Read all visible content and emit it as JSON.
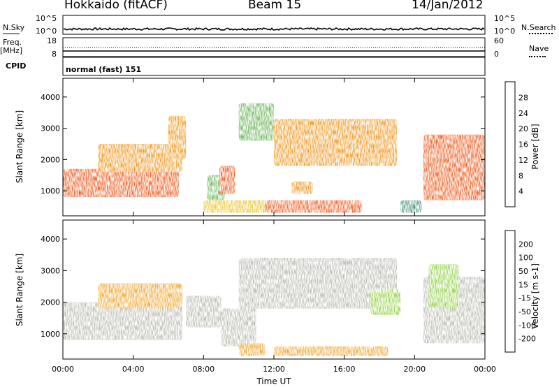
{
  "header": {
    "radar": "Hokkaido (fitACF)",
    "beam": "Beam 15",
    "date": "14/Jan/2012"
  },
  "strip_labels": {
    "nsky": "N.Sky",
    "nsky_top": "10^5",
    "nsky_bottom": "10^0",
    "nsearch": "N.Search",
    "nsearch_top": "10^5",
    "nsearch_bottom": "10^0",
    "freq": "Freq.",
    "freq_unit": "[MHz]",
    "freq_top": "18",
    "freq_bottom": "8",
    "nave": "Nave",
    "nave_top": "60",
    "nave_bottom": "0",
    "cpid": "CPID",
    "cpid_value": "normal (fast) 151"
  },
  "colors": {
    "power_scale": [
      "#1010e0",
      "#2a4fa8",
      "#3c8a70",
      "#60b050",
      "#e8c020",
      "#f09010",
      "#f05010",
      "#e81010"
    ],
    "velocity_scale": [
      "#e81010",
      "#f04010",
      "#f07010",
      "#f0a020",
      "#b8b8b0",
      "#b8b8b0",
      "#90d040",
      "#40a040",
      "#305090",
      "#2020c0"
    ]
  },
  "chart_data": [
    {
      "type": "heatmap",
      "name": "power",
      "ylabel": "Slant Range [km]",
      "colorbar_label": "Power [dB]",
      "colorbar_ticks": [
        4,
        8,
        12,
        16,
        20,
        24,
        28
      ],
      "colorbar_range": [
        0,
        32
      ],
      "ylim": [
        200,
        4600
      ],
      "yticks": [
        1000,
        2000,
        3000,
        4000
      ],
      "xlim": [
        0,
        24
      ],
      "regions": [
        {
          "t0": 0.0,
          "t1": 6.6,
          "r0": 800,
          "r1": 1700,
          "value": 26
        },
        {
          "t0": 2.0,
          "t1": 6.8,
          "r0": 1600,
          "r1": 2500,
          "value": 20
        },
        {
          "t0": 6.0,
          "t1": 7.0,
          "r0": 2000,
          "r1": 3400,
          "value": 22
        },
        {
          "t0": 8.2,
          "t1": 9.2,
          "r0": 700,
          "r1": 1500,
          "value": 14
        },
        {
          "t0": 8.9,
          "t1": 9.8,
          "r0": 900,
          "r1": 1800,
          "value": 26
        },
        {
          "t0": 8.0,
          "t1": 11.6,
          "r0": 300,
          "r1": 700,
          "value": 18
        },
        {
          "t0": 10.0,
          "t1": 12.0,
          "r0": 2600,
          "r1": 3800,
          "value": 12
        },
        {
          "t0": 12.0,
          "t1": 19.0,
          "r0": 1800,
          "r1": 3300,
          "value": 22
        },
        {
          "t0": 13.0,
          "t1": 14.2,
          "r0": 900,
          "r1": 1300,
          "value": 20
        },
        {
          "t0": 11.5,
          "t1": 17.0,
          "r0": 300,
          "r1": 700,
          "value": 24
        },
        {
          "t0": 19.2,
          "t1": 20.4,
          "r0": 300,
          "r1": 700,
          "value": 8
        },
        {
          "t0": 20.5,
          "t1": 24.0,
          "r0": 700,
          "r1": 2800,
          "value": 26
        }
      ]
    },
    {
      "type": "heatmap",
      "name": "velocity",
      "ylabel": "Slant Range [km]",
      "colorbar_label": "Velocity [m s-1]",
      "colorbar_ticks": [
        -200,
        -100,
        -50,
        -15,
        15,
        50,
        100,
        200
      ],
      "ylim": [
        200,
        4600
      ],
      "yticks": [
        1000,
        2000,
        3000,
        4000
      ],
      "xlim": [
        0,
        24
      ],
      "xticks": [
        "00:00",
        "04:00",
        "08:00",
        "12:00",
        "16:00",
        "20:00",
        "00:00"
      ],
      "xlabel": "Time UT",
      "regions": [
        {
          "t0": 0.0,
          "t1": 6.8,
          "r0": 800,
          "r1": 2000,
          "value": 0
        },
        {
          "t0": 2.0,
          "t1": 6.8,
          "r0": 1800,
          "r1": 2600,
          "value": -50
        },
        {
          "t0": 7.0,
          "t1": 9.0,
          "r0": 1200,
          "r1": 2200,
          "value": 0
        },
        {
          "t0": 9.0,
          "t1": 11.0,
          "r0": 600,
          "r1": 1800,
          "value": 0
        },
        {
          "t0": 10.0,
          "t1": 11.5,
          "r0": 300,
          "r1": 700,
          "value": -50
        },
        {
          "t0": 10.0,
          "t1": 19.0,
          "r0": 1800,
          "r1": 3400,
          "value": 0
        },
        {
          "t0": 12.0,
          "t1": 18.5,
          "r0": 300,
          "r1": 600,
          "value": -50
        },
        {
          "t0": 17.5,
          "t1": 19.2,
          "r0": 1600,
          "r1": 2400,
          "value": 50
        },
        {
          "t0": 20.5,
          "t1": 24.0,
          "r0": 700,
          "r1": 2800,
          "value": 0
        },
        {
          "t0": 20.8,
          "t1": 22.5,
          "r0": 1800,
          "r1": 3200,
          "value": 50
        }
      ]
    }
  ]
}
